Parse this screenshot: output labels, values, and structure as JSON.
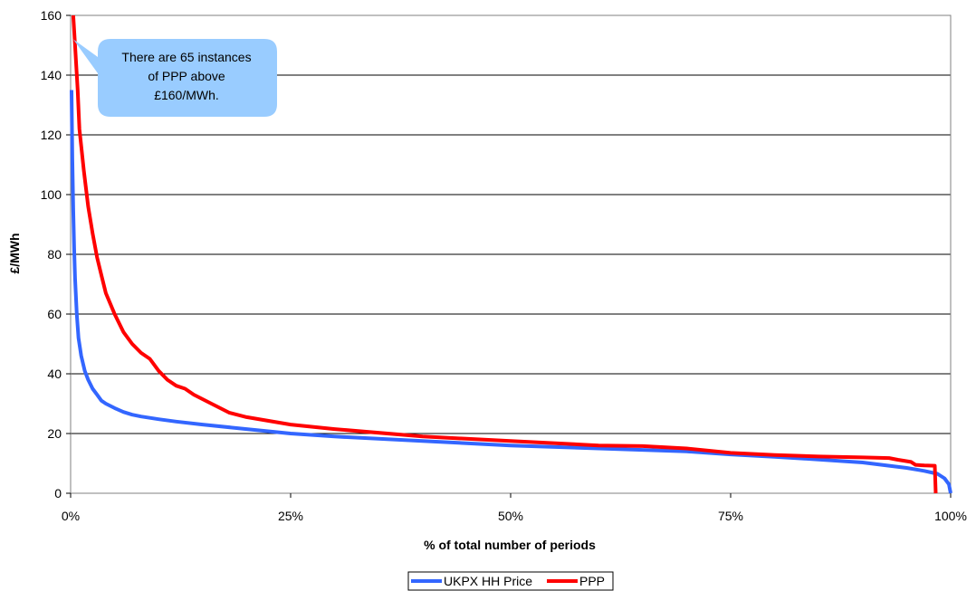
{
  "chart_data": {
    "type": "line",
    "title": "",
    "xlabel": "% of total number of periods",
    "ylabel": "£/MWh",
    "xlim": [
      0,
      100
    ],
    "ylim": [
      0,
      160
    ],
    "x_tick_values": [
      0,
      25,
      50,
      75,
      100
    ],
    "x_tick_labels": [
      "0%",
      "25%",
      "50%",
      "75%",
      "100%"
    ],
    "y_tick_values": [
      0,
      20,
      40,
      60,
      80,
      100,
      120,
      140,
      160
    ],
    "y_tick_labels": [
      "0",
      "20",
      "40",
      "60",
      "80",
      "100",
      "120",
      "140",
      "160"
    ],
    "grid": "horizontal",
    "legend_position": "bottom",
    "annotation": {
      "lines": [
        "There are 65 instances",
        "of PPP above",
        "£160/MWh."
      ],
      "points_to": [
        0.3,
        152
      ]
    },
    "series": [
      {
        "name": "UKPX HH Price",
        "color": "#3366FF",
        "points": [
          [
            0.1,
            135
          ],
          [
            0.2,
            112
          ],
          [
            0.3,
            95
          ],
          [
            0.4,
            82
          ],
          [
            0.5,
            72
          ],
          [
            0.7,
            60
          ],
          [
            0.9,
            52
          ],
          [
            1.2,
            46
          ],
          [
            1.6,
            41
          ],
          [
            2,
            38
          ],
          [
            2.5,
            35
          ],
          [
            3,
            33
          ],
          [
            3.5,
            31
          ],
          [
            4,
            30
          ],
          [
            5,
            28.5
          ],
          [
            6,
            27.2
          ],
          [
            7,
            26.3
          ],
          [
            8,
            25.7
          ],
          [
            10,
            24.8
          ],
          [
            12,
            24
          ],
          [
            15,
            23
          ],
          [
            20,
            21.5
          ],
          [
            25,
            20
          ],
          [
            30,
            19
          ],
          [
            40,
            17.5
          ],
          [
            50,
            16
          ],
          [
            60,
            15
          ],
          [
            70,
            14
          ],
          [
            75,
            13
          ],
          [
            80,
            12.2
          ],
          [
            85,
            11.3
          ],
          [
            90,
            10.3
          ],
          [
            95,
            8.5
          ],
          [
            97,
            7.5
          ],
          [
            98.5,
            6.5
          ],
          [
            99.3,
            5
          ],
          [
            99.8,
            3
          ],
          [
            100,
            0
          ]
        ]
      },
      {
        "name": "PPP",
        "color": "#FF0000",
        "points": [
          [
            0.3,
            160
          ],
          [
            0.5,
            150
          ],
          [
            0.8,
            135
          ],
          [
            1,
            122
          ],
          [
            1.5,
            108
          ],
          [
            2,
            96
          ],
          [
            2.5,
            87
          ],
          [
            3,
            79
          ],
          [
            3.5,
            73
          ],
          [
            4,
            67
          ],
          [
            5,
            60
          ],
          [
            6,
            54
          ],
          [
            7,
            50
          ],
          [
            8,
            47
          ],
          [
            9,
            45
          ],
          [
            10,
            41
          ],
          [
            11,
            38
          ],
          [
            12,
            36
          ],
          [
            13,
            35
          ],
          [
            14,
            33
          ],
          [
            16,
            30
          ],
          [
            18,
            27
          ],
          [
            20,
            25.5
          ],
          [
            25,
            23
          ],
          [
            30,
            21.5
          ],
          [
            40,
            19
          ],
          [
            50,
            17.5
          ],
          [
            60,
            16
          ],
          [
            65,
            15.8
          ],
          [
            70,
            15
          ],
          [
            75,
            13.5
          ],
          [
            80,
            12.8
          ],
          [
            85,
            12.3
          ],
          [
            90,
            12
          ],
          [
            93,
            11.8
          ],
          [
            94,
            11.2
          ],
          [
            95.5,
            10.5
          ],
          [
            96,
            9.5
          ],
          [
            97,
            9.3
          ],
          [
            98.2,
            9.2
          ],
          [
            98.3,
            0
          ]
        ]
      }
    ]
  }
}
